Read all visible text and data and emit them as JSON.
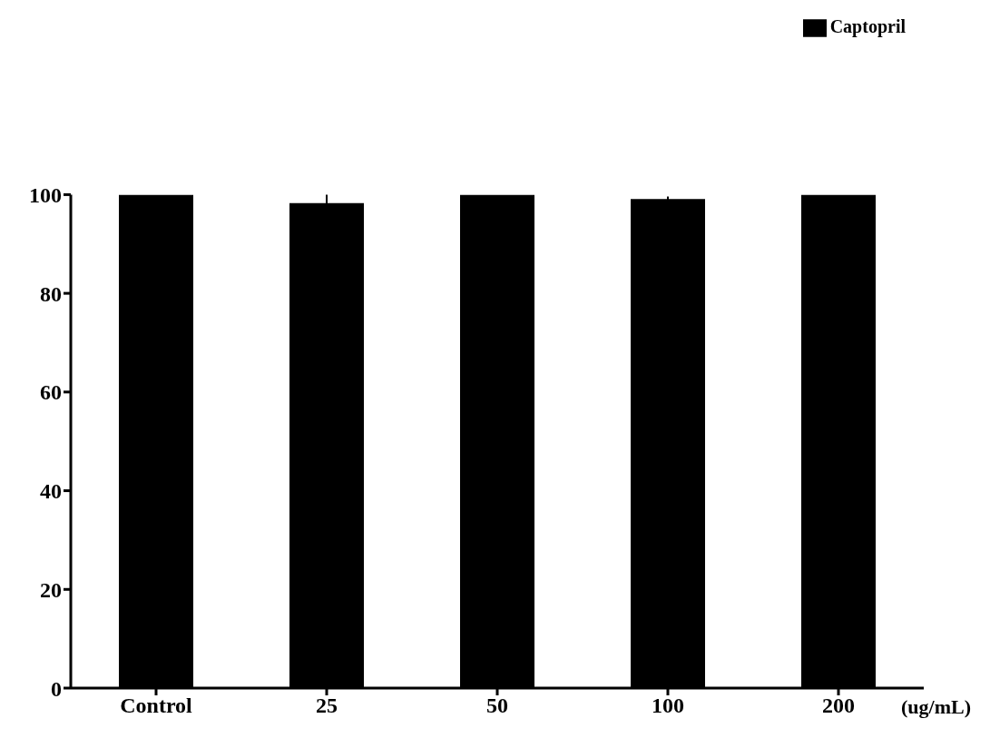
{
  "chart_data": {
    "type": "bar",
    "xlabel": "(ug/mL)",
    "categories": [
      "Control",
      "25",
      "50",
      "100",
      "200"
    ],
    "series": [
      {
        "name": "Captopril",
        "color": "#000000",
        "values": [
          100,
          98.3,
          100,
          99.1,
          100
        ],
        "errors": [
          null,
          1.7,
          null,
          0.5,
          null
        ]
      }
    ],
    "ylim": [
      0,
      100
    ],
    "yticks": [
      0,
      20,
      40,
      60,
      80,
      100
    ],
    "grid": false,
    "legend": "top right"
  }
}
